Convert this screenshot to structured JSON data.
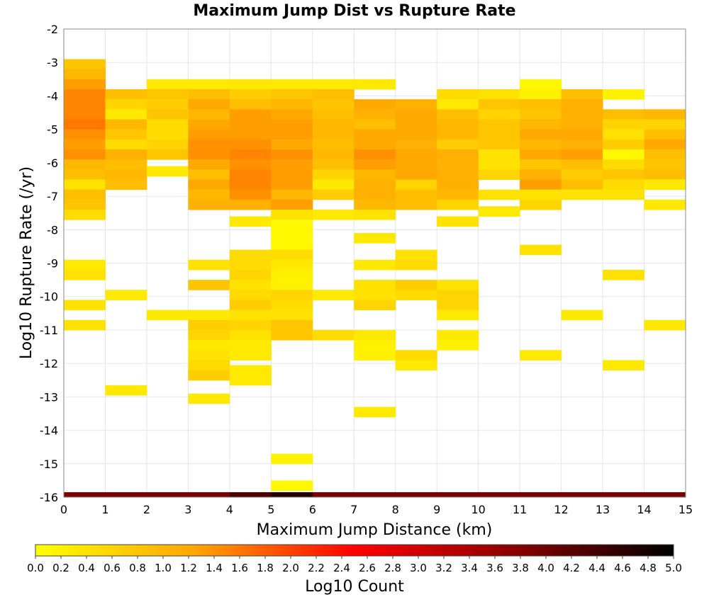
{
  "chart_data": {
    "type": "heatmap",
    "title": "Maximum Jump Dist vs Rupture Rate",
    "xlabel": "Maximum Jump Distance (km)",
    "ylabel": "Log10 Rupture Rate (/yr)",
    "colorbar_label": "Log10 Count",
    "xlim": [
      0,
      15
    ],
    "ylim": [
      -16,
      -2
    ],
    "x_ticks": [
      0,
      1,
      2,
      3,
      4,
      5,
      6,
      7,
      8,
      9,
      10,
      11,
      12,
      13,
      14,
      15
    ],
    "y_ticks": [
      -2,
      -3,
      -4,
      -5,
      -6,
      -7,
      -8,
      -9,
      -10,
      -11,
      -12,
      -13,
      -14,
      -15,
      -16
    ],
    "x_tick_labels": [
      "0",
      "1",
      "2",
      "3",
      "4",
      "5",
      "6",
      "7",
      "8",
      "9",
      "10",
      "11",
      "12",
      "13",
      "14",
      "15"
    ],
    "y_tick_labels": [
      "-2",
      "-3",
      "-4",
      "-5",
      "-6",
      "-7",
      "-8",
      "-9",
      "-10",
      "-11",
      "-12",
      "-13",
      "-14",
      "-15",
      "-16"
    ],
    "colorbar_range": [
      0,
      5
    ],
    "colorbar_ticks": [
      "0.0",
      "0.2",
      "0.4",
      "0.6",
      "0.8",
      "1.0",
      "1.2",
      "1.4",
      "1.6",
      "1.8",
      "2.0",
      "2.2",
      "2.4",
      "2.6",
      "2.8",
      "3.0",
      "3.2",
      "3.4",
      "3.6",
      "3.8",
      "4.0",
      "4.2",
      "4.4",
      "4.6",
      "4.8",
      "5.0"
    ],
    "colormap": [
      "#ffff00",
      "#ffa500",
      "#ff0000",
      "#8b0000",
      "#000000"
    ],
    "x_bin_width": 1,
    "y_bin_height": 0.3,
    "cells": [
      [
        0,
        -3.05,
        0.8
      ],
      [
        0,
        -3.35,
        1.0
      ],
      [
        0,
        -3.65,
        1.3
      ],
      [
        0,
        -3.95,
        1.5
      ],
      [
        0,
        -4.25,
        1.5
      ],
      [
        0,
        -4.55,
        1.5
      ],
      [
        0,
        -4.85,
        1.6
      ],
      [
        0,
        -5.15,
        1.4
      ],
      [
        0,
        -5.45,
        1.3
      ],
      [
        0,
        -5.75,
        1.4
      ],
      [
        0,
        -6.05,
        1.0
      ],
      [
        0,
        -6.35,
        0.9
      ],
      [
        0,
        -6.65,
        0.4
      ],
      [
        0,
        -6.95,
        0.9
      ],
      [
        0,
        -7.25,
        0.8
      ],
      [
        0,
        -7.55,
        0.5
      ],
      [
        0,
        -9.05,
        0.3
      ],
      [
        0,
        -9.35,
        0.4
      ],
      [
        0,
        -10.25,
        0.4
      ],
      [
        0,
        -10.85,
        0.4
      ],
      [
        1,
        -3.95,
        0.9
      ],
      [
        1,
        -4.25,
        0.6
      ],
      [
        1,
        -4.55,
        0.3
      ],
      [
        1,
        -4.85,
        1.0
      ],
      [
        1,
        -5.15,
        0.8
      ],
      [
        1,
        -5.45,
        0.5
      ],
      [
        1,
        -5.75,
        1.1
      ],
      [
        1,
        -6.05,
        0.9
      ],
      [
        1,
        -6.35,
        1.0
      ],
      [
        1,
        -6.65,
        0.9
      ],
      [
        1,
        -9.95,
        0.3
      ],
      [
        1,
        -12.8,
        0.3
      ],
      [
        2,
        -3.65,
        0.3
      ],
      [
        2,
        -3.95,
        0.8
      ],
      [
        2,
        -4.25,
        0.7
      ],
      [
        2,
        -4.55,
        0.8
      ],
      [
        2,
        -4.85,
        0.5
      ],
      [
        2,
        -5.15,
        0.5
      ],
      [
        2,
        -5.45,
        0.6
      ],
      [
        2,
        -5.75,
        0.8
      ],
      [
        2,
        -6.25,
        0.3
      ],
      [
        2,
        -10.55,
        0.3
      ],
      [
        3,
        -3.65,
        0.3
      ],
      [
        3,
        -3.95,
        0.9
      ],
      [
        3,
        -4.25,
        1.2
      ],
      [
        3,
        -4.55,
        1.0
      ],
      [
        3,
        -4.85,
        1.2
      ],
      [
        3,
        -5.15,
        1.3
      ],
      [
        3,
        -5.45,
        1.4
      ],
      [
        3,
        -5.75,
        1.4
      ],
      [
        3,
        -6.05,
        1.2
      ],
      [
        3,
        -6.35,
        0.9
      ],
      [
        3,
        -6.65,
        1.2
      ],
      [
        3,
        -6.95,
        1.0
      ],
      [
        3,
        -7.25,
        1.1
      ],
      [
        3,
        -9.05,
        0.4
      ],
      [
        3,
        -9.65,
        0.8
      ],
      [
        3,
        -10.55,
        0.3
      ],
      [
        3,
        -10.85,
        0.7
      ],
      [
        3,
        -11.15,
        0.6
      ],
      [
        3,
        -11.45,
        0.3
      ],
      [
        3,
        -11.75,
        0.4
      ],
      [
        3,
        -12.05,
        0.5
      ],
      [
        3,
        -12.35,
        0.7
      ],
      [
        3,
        -13.05,
        0.3
      ],
      [
        4,
        -3.65,
        0.3
      ],
      [
        4,
        -3.95,
        0.7
      ],
      [
        4,
        -4.25,
        0.9
      ],
      [
        4,
        -4.55,
        1.3
      ],
      [
        4,
        -4.85,
        1.3
      ],
      [
        4,
        -5.15,
        1.3
      ],
      [
        4,
        -5.45,
        1.4
      ],
      [
        4,
        -5.75,
        1.5
      ],
      [
        4,
        -6.05,
        1.4
      ],
      [
        4,
        -6.35,
        1.5
      ],
      [
        4,
        -6.65,
        1.5
      ],
      [
        4,
        -6.95,
        1.4
      ],
      [
        4,
        -7.25,
        1.1
      ],
      [
        4,
        -7.75,
        0.3
      ],
      [
        4,
        -8.75,
        0.5
      ],
      [
        4,
        -9.05,
        0.5
      ],
      [
        4,
        -9.35,
        0.6
      ],
      [
        4,
        -9.65,
        0.4
      ],
      [
        4,
        -9.95,
        0.5
      ],
      [
        4,
        -10.25,
        0.7
      ],
      [
        4,
        -10.55,
        0.4
      ],
      [
        4,
        -10.85,
        0.6
      ],
      [
        4,
        -11.15,
        0.4
      ],
      [
        4,
        -11.45,
        0.3
      ],
      [
        4,
        -11.75,
        0.3
      ],
      [
        4,
        -12.2,
        0.3
      ],
      [
        4,
        -12.5,
        0.3
      ],
      [
        5,
        -3.65,
        0.3
      ],
      [
        5,
        -3.95,
        0.8
      ],
      [
        5,
        -4.25,
        1.0
      ],
      [
        5,
        -4.55,
        1.2
      ],
      [
        5,
        -4.85,
        1.3
      ],
      [
        5,
        -5.15,
        1.3
      ],
      [
        5,
        -5.45,
        1.2
      ],
      [
        5,
        -5.75,
        1.4
      ],
      [
        5,
        -6.05,
        1.3
      ],
      [
        5,
        -6.35,
        1.3
      ],
      [
        5,
        -6.65,
        1.3
      ],
      [
        5,
        -6.95,
        1.0
      ],
      [
        5,
        -7.25,
        1.3
      ],
      [
        5,
        -7.55,
        0.4
      ],
      [
        5,
        -7.85,
        0.1
      ],
      [
        5,
        -8.15,
        0.1
      ],
      [
        5,
        -8.45,
        0.1
      ],
      [
        5,
        -8.75,
        0.5
      ],
      [
        5,
        -9.05,
        0.3
      ],
      [
        5,
        -9.35,
        0.2
      ],
      [
        5,
        -9.65,
        0.2
      ],
      [
        5,
        -9.95,
        0.6
      ],
      [
        5,
        -10.25,
        0.5
      ],
      [
        5,
        -10.55,
        0.4
      ],
      [
        5,
        -10.85,
        0.8
      ],
      [
        5,
        -11.15,
        0.8
      ],
      [
        5,
        -14.85,
        0.2
      ],
      [
        5,
        -15.65,
        0.1
      ],
      [
        6,
        -3.65,
        0.3
      ],
      [
        6,
        -3.95,
        0.9
      ],
      [
        6,
        -4.25,
        0.8
      ],
      [
        6,
        -4.55,
        0.9
      ],
      [
        6,
        -4.85,
        1.0
      ],
      [
        6,
        -5.15,
        1.0
      ],
      [
        6,
        -5.45,
        0.9
      ],
      [
        6,
        -5.75,
        1.0
      ],
      [
        6,
        -6.05,
        0.9
      ],
      [
        6,
        -6.35,
        0.6
      ],
      [
        6,
        -6.65,
        0.3
      ],
      [
        6,
        -6.95,
        0.7
      ],
      [
        6,
        -7.55,
        0.3
      ],
      [
        6,
        -9.95,
        0.3
      ],
      [
        6,
        -11.15,
        0.5
      ],
      [
        7,
        -3.65,
        0.3
      ],
      [
        7,
        -4.25,
        1.2
      ],
      [
        7,
        -4.55,
        1.1
      ],
      [
        7,
        -4.85,
        0.9
      ],
      [
        7,
        -5.15,
        1.2
      ],
      [
        7,
        -5.45,
        1.2
      ],
      [
        7,
        -5.75,
        1.4
      ],
      [
        7,
        -6.05,
        1.3
      ],
      [
        7,
        -6.35,
        1.0
      ],
      [
        7,
        -6.65,
        1.1
      ],
      [
        7,
        -6.95,
        1.1
      ],
      [
        7,
        -7.25,
        1.0
      ],
      [
        7,
        -7.55,
        0.4
      ],
      [
        7,
        -8.25,
        0.3
      ],
      [
        7,
        -9.05,
        0.3
      ],
      [
        7,
        -9.65,
        0.4
      ],
      [
        7,
        -9.95,
        0.4
      ],
      [
        7,
        -10.25,
        0.6
      ],
      [
        7,
        -11.15,
        0.3
      ],
      [
        7,
        -11.45,
        0.2
      ],
      [
        7,
        -11.75,
        0.2
      ],
      [
        7,
        -13.45,
        0.3
      ],
      [
        8,
        -4.25,
        1.1
      ],
      [
        8,
        -4.55,
        1.2
      ],
      [
        8,
        -4.85,
        1.2
      ],
      [
        8,
        -5.15,
        1.2
      ],
      [
        8,
        -5.45,
        1.1
      ],
      [
        8,
        -5.75,
        1.2
      ],
      [
        8,
        -6.05,
        1.2
      ],
      [
        8,
        -6.35,
        1.2
      ],
      [
        8,
        -6.65,
        0.6
      ],
      [
        8,
        -6.95,
        0.9
      ],
      [
        8,
        -7.25,
        0.9
      ],
      [
        8,
        -8.75,
        0.4
      ],
      [
        8,
        -9.05,
        0.5
      ],
      [
        8,
        -9.65,
        0.7
      ],
      [
        8,
        -9.95,
        0.5
      ],
      [
        8,
        -11.75,
        0.5
      ],
      [
        8,
        -12.05,
        0.3
      ],
      [
        9,
        -3.95,
        0.5
      ],
      [
        9,
        -4.25,
        0.3
      ],
      [
        9,
        -4.55,
        0.9
      ],
      [
        9,
        -4.85,
        1.0
      ],
      [
        9,
        -5.15,
        1.0
      ],
      [
        9,
        -5.45,
        0.7
      ],
      [
        9,
        -5.75,
        1.1
      ],
      [
        9,
        -6.05,
        1.1
      ],
      [
        9,
        -6.35,
        1.1
      ],
      [
        9,
        -6.65,
        1.1
      ],
      [
        9,
        -6.95,
        1.0
      ],
      [
        9,
        -7.25,
        0.6
      ],
      [
        9,
        -7.75,
        0.4
      ],
      [
        9,
        -9.65,
        0.4
      ],
      [
        9,
        -9.95,
        0.6
      ],
      [
        9,
        -10.25,
        0.6
      ],
      [
        9,
        -10.55,
        0.3
      ],
      [
        9,
        -11.15,
        0.3
      ],
      [
        9,
        -11.45,
        0.2
      ],
      [
        10,
        -3.95,
        0.4
      ],
      [
        10,
        -4.25,
        0.8
      ],
      [
        10,
        -4.55,
        0.6
      ],
      [
        10,
        -4.85,
        0.8
      ],
      [
        10,
        -5.15,
        0.8
      ],
      [
        10,
        -5.45,
        0.8
      ],
      [
        10,
        -5.75,
        0.4
      ],
      [
        10,
        -6.05,
        0.4
      ],
      [
        10,
        -6.35,
        0.6
      ],
      [
        10,
        -6.95,
        0.4
      ],
      [
        10,
        -7.45,
        0.3
      ],
      [
        11,
        -3.65,
        0.1
      ],
      [
        11,
        -3.95,
        0.2
      ],
      [
        11,
        -4.25,
        0.9
      ],
      [
        11,
        -4.55,
        0.8
      ],
      [
        11,
        -4.85,
        1.0
      ],
      [
        11,
        -5.15,
        1.2
      ],
      [
        11,
        -5.45,
        1.0
      ],
      [
        11,
        -5.75,
        1.2
      ],
      [
        11,
        -6.05,
        0.8
      ],
      [
        11,
        -6.35,
        1.1
      ],
      [
        11,
        -6.65,
        1.3
      ],
      [
        11,
        -6.95,
        0.4
      ],
      [
        11,
        -7.25,
        0.6
      ],
      [
        11,
        -8.6,
        0.4
      ],
      [
        11,
        -11.75,
        0.3
      ],
      [
        12,
        -3.95,
        0.9
      ],
      [
        12,
        -4.25,
        1.1
      ],
      [
        12,
        -4.55,
        1.1
      ],
      [
        12,
        -4.85,
        1.1
      ],
      [
        12,
        -5.15,
        1.2
      ],
      [
        12,
        -5.45,
        1.1
      ],
      [
        12,
        -5.75,
        1.3
      ],
      [
        12,
        -6.05,
        0.9
      ],
      [
        12,
        -6.35,
        0.7
      ],
      [
        12,
        -6.65,
        0.9
      ],
      [
        12,
        -6.95,
        0.4
      ],
      [
        12,
        -10.55,
        0.3
      ],
      [
        13,
        -3.95,
        0.2
      ],
      [
        13,
        -4.55,
        0.9
      ],
      [
        13,
        -4.85,
        0.6
      ],
      [
        13,
        -5.15,
        0.4
      ],
      [
        13,
        -5.45,
        0.7
      ],
      [
        13,
        -5.75,
        0.1
      ],
      [
        13,
        -6.05,
        0.5
      ],
      [
        13,
        -6.35,
        0.8
      ],
      [
        13,
        -6.65,
        0.5
      ],
      [
        13,
        -6.95,
        0.4
      ],
      [
        13,
        -9.35,
        0.4
      ],
      [
        13,
        -12.05,
        0.3
      ],
      [
        14,
        -4.55,
        1.0
      ],
      [
        14,
        -4.85,
        0.6
      ],
      [
        14,
        -5.15,
        0.9
      ],
      [
        14,
        -5.45,
        1.2
      ],
      [
        14,
        -5.75,
        0.9
      ],
      [
        14,
        -6.05,
        0.8
      ],
      [
        14,
        -6.35,
        0.9
      ],
      [
        14,
        -6.65,
        0.3
      ],
      [
        14,
        -7.25,
        0.3
      ],
      [
        14,
        -10.85,
        0.3
      ]
    ],
    "bottom_row_y": -16,
    "bottom_row_values": [
      3.9,
      3.9,
      3.9,
      3.9,
      4.3,
      4.7,
      3.9,
      3.9,
      3.9,
      3.9,
      3.9,
      3.9,
      3.9,
      3.9,
      3.9
    ]
  }
}
